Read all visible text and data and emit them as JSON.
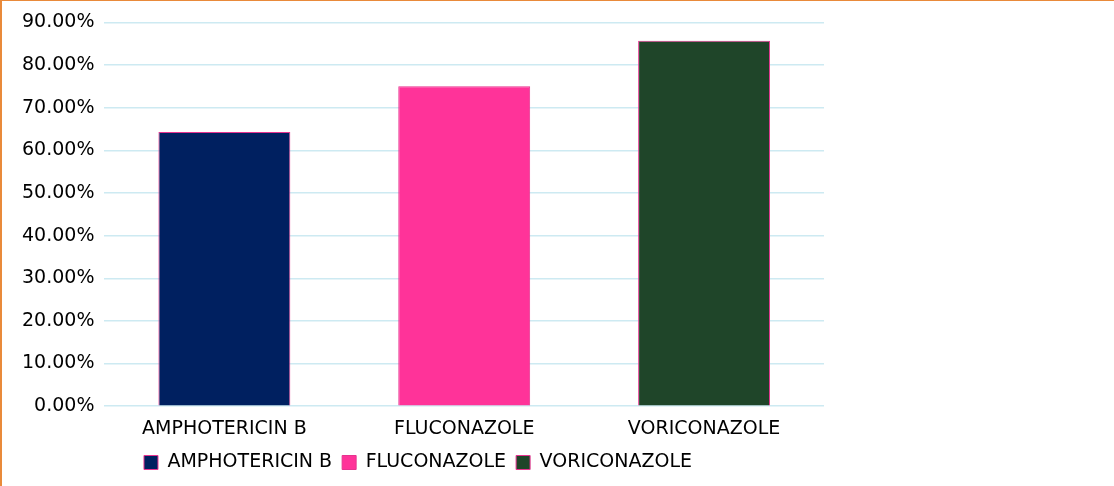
{
  "chart_data": {
    "type": "bar",
    "categories": [
      "AMPHOTERICIN B",
      "FLUCONAZOLE",
      "VORICONAZOLE"
    ],
    "series": [
      {
        "name": "AMPHOTERICIN B",
        "color": "#002060",
        "values": [
          64.3,
          null,
          null
        ]
      },
      {
        "name": "FLUCONAZOLE",
        "color": "#ff3399",
        "values": [
          null,
          75,
          null
        ]
      },
      {
        "name": "VORICONAZOLE",
        "color": "#1f4529",
        "values": [
          null,
          null,
          85.7
        ]
      }
    ],
    "ylim": [
      0,
      90
    ],
    "yticks": [
      {
        "value": 0,
        "label": "0.00%"
      },
      {
        "value": 10,
        "label": "10.00%"
      },
      {
        "value": 20,
        "label": "20.00%"
      },
      {
        "value": 30,
        "label": "30.00%"
      },
      {
        "value": 40,
        "label": "40.00%"
      },
      {
        "value": 50,
        "label": "50.00%"
      },
      {
        "value": 60,
        "label": "60.00%"
      },
      {
        "value": 70,
        "label": "70.00%"
      },
      {
        "value": 80,
        "label": "80.00%"
      },
      {
        "value": 90,
        "label": "90.00%"
      }
    ],
    "grid": "y",
    "legend": "bottom"
  }
}
